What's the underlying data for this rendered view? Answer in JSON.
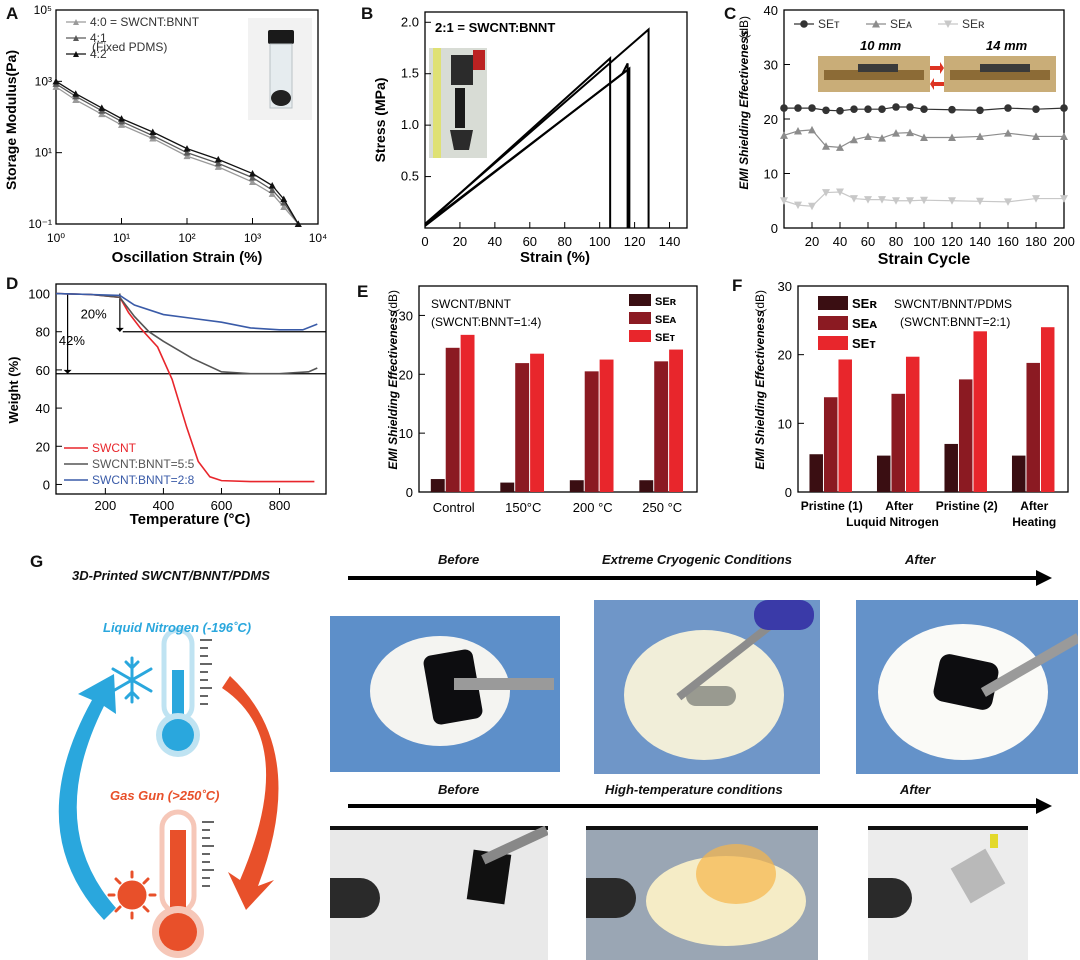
{
  "panels": {
    "A": {
      "letter": "A",
      "xlabel": "Oscillation Strain (%)",
      "ylabel": "Storage Modulus(Pa)",
      "legend": [
        "4:0 = SWCNT:BNNT",
        "4:1",
        "4:2"
      ],
      "legend_note": "(Fixed PDMS)",
      "xticks": [
        "10⁰",
        "10¹",
        "10²",
        "10³",
        "10⁴"
      ],
      "yticks": [
        "10⁻¹",
        "10¹",
        "10³",
        "10⁵"
      ]
    },
    "B": {
      "letter": "B",
      "title": "2:1 = SWCNT:BNNT",
      "xlabel": "Strain (%)",
      "ylabel": "Stress (MPa)",
      "xticks": [
        "0",
        "20",
        "40",
        "60",
        "80",
        "100",
        "120",
        "140"
      ],
      "yticks": [
        "0.5",
        "1.0",
        "1.5",
        "2.0"
      ]
    },
    "C": {
      "letter": "C",
      "xlabel": "Strain Cycle",
      "ylabel": "EMI Shielding Effectiveness",
      "yunit": "(dB)",
      "legend": [
        "SEᴛ",
        "SEᴀ",
        "SEʀ"
      ],
      "inset_labels": [
        "10 mm",
        "14 mm"
      ],
      "xticks": [
        "20",
        "40",
        "60",
        "80",
        "100",
        "120",
        "140",
        "160",
        "180",
        "200"
      ],
      "yticks": [
        "0",
        "10",
        "20",
        "30",
        "40"
      ]
    },
    "D": {
      "letter": "D",
      "xlabel": "Temperature (°C)",
      "ylabel": "Weight (%)",
      "annotations": [
        "20%",
        "42%"
      ],
      "legend": [
        "SWCNT",
        "SWCNT:BNNT=5:5",
        "SWCNT:BNNT=2:8"
      ],
      "xticks": [
        "200",
        "400",
        "600",
        "800"
      ],
      "yticks": [
        "0",
        "20",
        "40",
        "60",
        "80",
        "100"
      ]
    },
    "E": {
      "letter": "E",
      "note1": "SWCNT/BNNT",
      "note2": "(SWCNT:BNNT=1:4)",
      "ylabel": "EMI Shielding Effectiveness",
      "yunit": "(dB)",
      "legend": [
        "SEʀ",
        "SEᴀ",
        "SEᴛ"
      ],
      "yticks": [
        "0",
        "10",
        "20",
        "30"
      ]
    },
    "F": {
      "letter": "F",
      "note1": "SWCNT/BNNT/PDMS",
      "note2": "(SWCNT:BNNT=2:1)",
      "ylabel": "EMI Shielding Effectiveness",
      "yunit": "(dB)",
      "legend": [
        "SEʀ",
        "SEᴀ",
        "SEᴛ"
      ],
      "cat_lines": [
        [
          "Pristine (1)"
        ],
        [
          "After"
        ],
        [
          "Pristine (2)"
        ],
        [
          "After"
        ]
      ],
      "cat_sub": [
        "Luquid Nitrogen",
        "Heating"
      ],
      "yticks": [
        "0",
        "10",
        "20",
        "30"
      ]
    },
    "G": {
      "letter": "G",
      "title": "3D-Printed SWCNT/BNNT/PDMS",
      "cold_label": "Liquid Nitrogen (-196˚C)",
      "hot_label": "Gas Gun (>250˚C)",
      "row1": [
        "Before",
        "Extreme Cryogenic Conditions",
        "After"
      ],
      "row2": [
        "Before",
        "High-temperature conditions",
        "After"
      ]
    }
  },
  "colors": {
    "se_r": "#3a0e12",
    "se_a": "#8b1a22",
    "se_t": "#e8262c",
    "swcnt": "#e8262c",
    "ratio55": "#555555",
    "ratio28": "#3a5ba8",
    "cold": "#2aa7dd",
    "hot": "#e8502a"
  },
  "chart_data": [
    {
      "panel": "A",
      "type": "line",
      "xscale": "log",
      "yscale": "log",
      "xlim": [
        1,
        10000
      ],
      "ylim": [
        0.1,
        100000
      ],
      "series": [
        {
          "name": "4:0 = SWCNT:BNNT",
          "x": [
            1,
            2,
            5,
            10,
            30,
            100,
            300,
            1000,
            2000,
            3000,
            5000
          ],
          "y": [
            700,
            300,
            120,
            60,
            25,
            8,
            4,
            1.5,
            0.7,
            0.3,
            0.1
          ]
        },
        {
          "name": "4:1",
          "x": [
            1,
            2,
            5,
            10,
            30,
            100,
            300,
            1000,
            2000,
            3000,
            5000
          ],
          "y": [
            850,
            380,
            150,
            75,
            30,
            10,
            5,
            2,
            0.9,
            0.4,
            0.1
          ]
        },
        {
          "name": "4:2",
          "x": [
            1,
            2,
            5,
            10,
            30,
            100,
            300,
            1000,
            2000,
            3000,
            5000
          ],
          "y": [
            1000,
            450,
            180,
            90,
            38,
            13,
            6.5,
            2.6,
            1.2,
            0.5,
            0.1
          ]
        }
      ]
    },
    {
      "panel": "B",
      "type": "line",
      "xlim": [
        0,
        150
      ],
      "ylim": [
        0,
        2.1
      ],
      "series": [
        {
          "x": [
            0,
            106,
            106
          ],
          "y": [
            0.03,
            1.65,
            0.0
          ]
        },
        {
          "x": [
            0,
            113,
            116,
            116
          ],
          "y": [
            0.02,
            1.5,
            1.6,
            0.0
          ]
        },
        {
          "x": [
            0,
            128,
            128
          ],
          "y": [
            0.04,
            1.93,
            0.0
          ]
        },
        {
          "x": [
            0,
            117,
            117
          ],
          "y": [
            0.03,
            1.55,
            0.0
          ]
        }
      ]
    },
    {
      "panel": "C",
      "type": "line",
      "xlim": [
        0,
        200
      ],
      "ylim": [
        0,
        40
      ],
      "x": [
        0,
        10,
        20,
        30,
        40,
        50,
        60,
        70,
        80,
        90,
        100,
        120,
        140,
        160,
        180,
        200
      ],
      "series": [
        {
          "name": "SEᴛ",
          "values": [
            22,
            22,
            22,
            21.6,
            21.5,
            21.8,
            21.8,
            21.8,
            22.2,
            22.2,
            21.8,
            21.7,
            21.6,
            22.0,
            21.8,
            22.0
          ]
        },
        {
          "name": "SEᴀ",
          "values": [
            17,
            17.8,
            18,
            15,
            14.8,
            16.2,
            16.8,
            16.5,
            17.4,
            17.5,
            16.6,
            16.6,
            16.8,
            17.4,
            16.8,
            16.8
          ]
        },
        {
          "name": "SEʀ",
          "values": [
            5,
            4.2,
            4.0,
            6.5,
            6.6,
            5.4,
            5.2,
            5.2,
            5.0,
            5.0,
            5.1,
            5.0,
            4.9,
            4.8,
            5.4,
            5.4
          ]
        }
      ]
    },
    {
      "panel": "D",
      "type": "line",
      "xlim": [
        30,
        960
      ],
      "ylim": [
        -5,
        105
      ],
      "series": [
        {
          "name": "SWCNT",
          "x": [
            30,
            150,
            250,
            280,
            320,
            380,
            430,
            480,
            520,
            560,
            600,
            700,
            800,
            920
          ],
          "y": [
            100,
            99.5,
            98,
            90,
            82,
            72,
            55,
            30,
            12,
            4,
            2,
            1.5,
            1.5,
            1.5
          ]
        },
        {
          "name": "SWCNT:BNNT=5:5",
          "x": [
            30,
            150,
            250,
            300,
            350,
            400,
            500,
            600,
            700,
            800,
            900,
            930
          ],
          "y": [
            100,
            99.5,
            98,
            88,
            80,
            75,
            66,
            59,
            58,
            58,
            59,
            61
          ]
        },
        {
          "name": "SWCNT:BNNT=2:8",
          "x": [
            30,
            150,
            250,
            300,
            400,
            500,
            600,
            700,
            800,
            880,
            930
          ],
          "y": [
            100,
            99.5,
            99,
            94,
            89,
            87,
            85,
            82,
            81,
            81,
            84
          ]
        }
      ]
    },
    {
      "panel": "E",
      "type": "bar",
      "categories": [
        "Control",
        "150°C",
        "200 °C",
        "250 °C"
      ],
      "ylim": [
        0,
        35
      ],
      "series": [
        {
          "name": "SEʀ",
          "values": [
            2.2,
            1.6,
            2.0,
            2.0
          ]
        },
        {
          "name": "SEᴀ",
          "values": [
            24.5,
            21.9,
            20.5,
            22.2
          ]
        },
        {
          "name": "SEᴛ",
          "values": [
            26.7,
            23.5,
            22.5,
            24.2
          ]
        }
      ]
    },
    {
      "panel": "F",
      "type": "bar",
      "categories": [
        "Pristine (1)",
        "After Luquid Nitrogen",
        "Pristine (2)",
        "After Heating"
      ],
      "ylim": [
        0,
        30
      ],
      "series": [
        {
          "name": "SEʀ",
          "values": [
            5.5,
            5.3,
            7.0,
            5.3
          ]
        },
        {
          "name": "SEᴀ",
          "values": [
            13.8,
            14.3,
            16.4,
            18.8
          ]
        },
        {
          "name": "SEᴛ",
          "values": [
            19.3,
            19.7,
            23.4,
            24.0
          ]
        }
      ]
    }
  ]
}
